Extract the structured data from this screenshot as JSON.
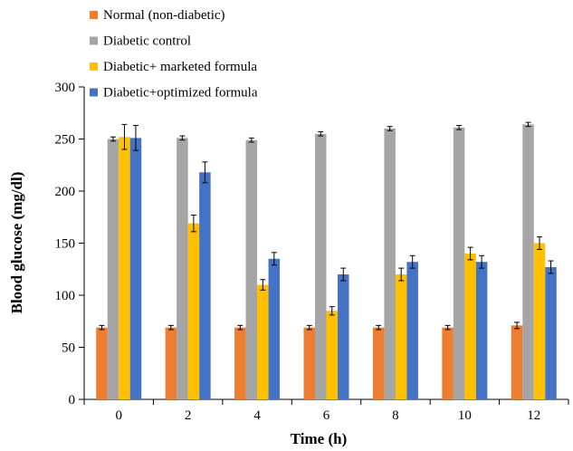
{
  "chart_data": {
    "type": "bar",
    "xlabel": "Time (h)",
    "ylabel": "Blood glucose (mg/dl)",
    "ylim": [
      0,
      300
    ],
    "yticks": [
      0,
      50,
      100,
      150,
      200,
      250,
      300
    ],
    "categories": [
      "0",
      "2",
      "4",
      "6",
      "8",
      "10",
      "12"
    ],
    "legend_position": "top-left",
    "grid": false,
    "error_bars": true,
    "series": [
      {
        "name": "Normal (non-diabetic)",
        "color": "#ED7D31",
        "values": [
          69,
          69,
          69,
          69,
          69,
          69,
          71
        ],
        "errors": [
          2,
          2,
          2,
          2,
          2,
          2,
          3
        ]
      },
      {
        "name": "Diabetic control",
        "color": "#A5A5A5",
        "values": [
          250,
          251,
          249,
          255,
          260,
          261,
          264
        ],
        "errors": [
          2,
          2,
          2,
          2,
          2,
          2,
          2
        ]
      },
      {
        "name": "Diabetic+ marketed formula",
        "color": "#FFC000",
        "values": [
          252,
          169,
          110,
          85,
          120,
          140,
          150
        ],
        "errors": [
          12,
          8,
          5,
          4,
          6,
          6,
          6
        ]
      },
      {
        "name": "Diabetic+optimized formula",
        "color": "#4472C4",
        "values": [
          251,
          218,
          135,
          120,
          132,
          132,
          127
        ],
        "errors": [
          12,
          10,
          6,
          6,
          6,
          6,
          6
        ]
      }
    ]
  }
}
